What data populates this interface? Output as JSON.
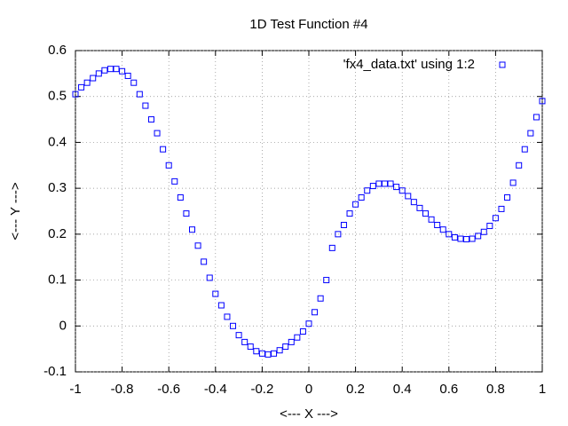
{
  "chart_data": {
    "type": "scatter",
    "title": "1D Test Function #4",
    "x_label": "<--- X --->",
    "y_label": "<--- Y --->",
    "series": [
      {
        "name": "'fx4_data.txt' using 1:2",
        "color": "#0000ff",
        "x": [
          -1,
          -0.975,
          -0.95,
          -0.925,
          -0.9,
          -0.875,
          -0.85,
          -0.825,
          -0.8,
          -0.775,
          -0.75,
          -0.725,
          -0.7,
          -0.675,
          -0.65,
          -0.625,
          -0.6,
          -0.575,
          -0.55,
          -0.525,
          -0.5,
          -0.475,
          -0.45,
          -0.425,
          -0.4,
          -0.375,
          -0.35,
          -0.325,
          -0.3,
          -0.275,
          -0.25,
          -0.225,
          -0.2,
          -0.175,
          -0.15,
          -0.125,
          -0.1,
          -0.075,
          -0.05,
          -0.025,
          0,
          0.025,
          0.05,
          0.075,
          0.1,
          0.125,
          0.15,
          0.175,
          0.2,
          0.225,
          0.25,
          0.275,
          0.3,
          0.325,
          0.35,
          0.375,
          0.4,
          0.425,
          0.45,
          0.475,
          0.5,
          0.525,
          0.55,
          0.575,
          0.6,
          0.625,
          0.65,
          0.675,
          0.7,
          0.725,
          0.75,
          0.775,
          0.8,
          0.825,
          0.85,
          0.875,
          0.9,
          0.925,
          0.95,
          0.975,
          1
        ],
        "values": [
          0.505,
          0.52,
          0.53,
          0.54,
          0.55,
          0.557,
          0.56,
          0.56,
          0.555,
          0.545,
          0.53,
          0.505,
          0.48,
          0.45,
          0.42,
          0.385,
          0.35,
          0.315,
          0.28,
          0.245,
          0.21,
          0.175,
          0.14,
          0.105,
          0.07,
          0.045,
          0.02,
          0.0,
          -0.02,
          -0.035,
          -0.045,
          -0.055,
          -0.06,
          -0.062,
          -0.06,
          -0.053,
          -0.045,
          -0.035,
          -0.025,
          -0.012,
          0.005,
          0.03,
          0.06,
          0.1,
          0.17,
          0.2,
          0.22,
          0.245,
          0.265,
          0.28,
          0.295,
          0.305,
          0.31,
          0.31,
          0.31,
          0.303,
          0.295,
          0.283,
          0.27,
          0.257,
          0.245,
          0.232,
          0.22,
          0.21,
          0.2,
          0.193,
          0.19,
          0.189,
          0.19,
          0.196,
          0.205,
          0.218,
          0.235,
          0.255,
          0.28,
          0.312,
          0.35,
          0.385,
          0.42,
          0.455,
          0.49
        ]
      }
    ],
    "xlim": [
      -1,
      1
    ],
    "xticks": [
      -1,
      -0.8,
      -0.6,
      -0.4,
      -0.2,
      0,
      0.2,
      0.4,
      0.6,
      0.8,
      1
    ],
    "ylim": [
      -0.1,
      0.6
    ],
    "yticks": [
      -0.1,
      0,
      0.1,
      0.2,
      0.3,
      0.4,
      0.5,
      0.6
    ],
    "grid": true,
    "legend_position": "top-right"
  }
}
